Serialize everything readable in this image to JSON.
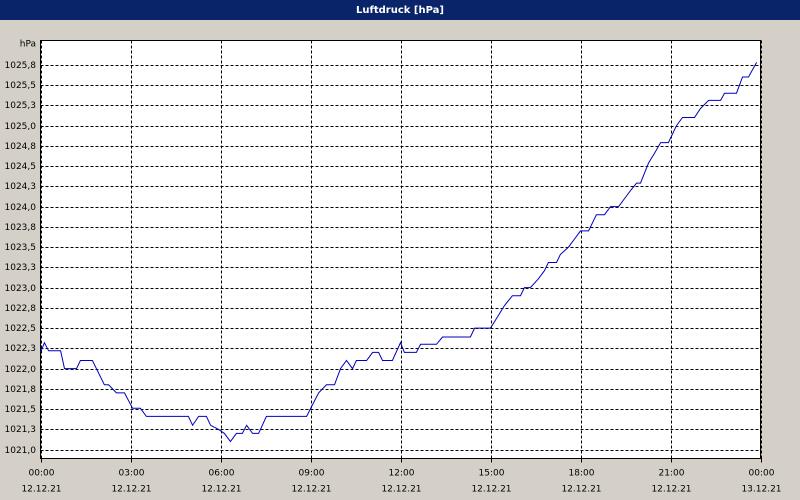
{
  "chart_data": {
    "type": "line",
    "title": "Luftdruck [hPa]",
    "y_label": "hPa",
    "x": [
      0,
      0.13,
      0.27,
      0.67,
      0.8,
      1.2,
      1.33,
      1.73,
      2.13,
      2.27,
      2.53,
      2.8,
      3.07,
      3.33,
      3.53,
      4.93,
      5.07,
      5.27,
      5.53,
      5.67,
      5.93,
      6.13,
      6.33,
      6.53,
      6.73,
      6.87,
      7.07,
      7.27,
      7.53,
      8.87,
      9.27,
      9.53,
      9.8,
      10,
      10.2,
      10.4,
      10.53,
      10.87,
      11.07,
      11.27,
      11.4,
      11.73,
      12,
      12.13,
      12.53,
      12.67,
      13.2,
      13.4,
      14.33,
      14.47,
      15,
      15.47,
      15.73,
      16,
      16.13,
      16.33,
      16.6,
      16.8,
      16.93,
      17.2,
      17.33,
      17.6,
      17.8,
      18,
      18.27,
      18.53,
      18.8,
      19,
      19.27,
      19.47,
      19.67,
      19.87,
      20,
      20.27,
      20.47,
      20.67,
      20.93,
      21.2,
      21.4,
      21.8,
      22,
      22.27,
      22.67,
      22.8,
      23.2,
      23.4,
      23.6,
      23.87
    ],
    "series": [
      {
        "name": "Luftdruck",
        "color": "#0000c0",
        "values": [
          1022.2,
          1022.32,
          1022.22,
          1022.22,
          1022.0,
          1022.0,
          1022.1,
          1022.1,
          1021.8,
          1021.8,
          1021.7,
          1021.7,
          1021.51,
          1021.51,
          1021.41,
          1021.41,
          1021.3,
          1021.41,
          1021.41,
          1021.3,
          1021.25,
          1021.2,
          1021.1,
          1021.2,
          1021.2,
          1021.3,
          1021.2,
          1021.2,
          1021.41,
          1021.41,
          1021.7,
          1021.8,
          1021.8,
          1022.0,
          1022.1,
          1022.0,
          1022.1,
          1022.1,
          1022.2,
          1022.2,
          1022.1,
          1022.1,
          1022.32,
          1022.2,
          1022.2,
          1022.3,
          1022.3,
          1022.39,
          1022.39,
          1022.5,
          1022.5,
          1022.78,
          1022.9,
          1022.9,
          1023.0,
          1023.0,
          1023.11,
          1023.21,
          1023.31,
          1023.31,
          1023.41,
          1023.5,
          1023.6,
          1023.7,
          1023.7,
          1023.9,
          1023.9,
          1024.0,
          1024.0,
          1024.1,
          1024.2,
          1024.29,
          1024.29,
          1024.54,
          1024.66,
          1024.79,
          1024.79,
          1025.0,
          1025.1,
          1025.1,
          1025.21,
          1025.31,
          1025.31,
          1025.4,
          1025.4,
          1025.6,
          1025.6,
          1025.78
        ]
      }
    ],
    "xlim": [
      0,
      24
    ],
    "ylim": [
      1020.89,
      1026.05
    ],
    "xticks": [
      {
        "value": 0,
        "label": "00:00"
      },
      {
        "value": 3,
        "label": "03:00"
      },
      {
        "value": 6,
        "label": "06:00"
      },
      {
        "value": 9,
        "label": "09:00"
      },
      {
        "value": 12,
        "label": "12:00"
      },
      {
        "value": 15,
        "label": "15:00"
      },
      {
        "value": 18,
        "label": "18:00"
      },
      {
        "value": 21,
        "label": "21:00"
      },
      {
        "value": 24,
        "label": "00:00"
      }
    ],
    "xtick_dates": [
      "12.12.21",
      "12.12.21",
      "12.12.21",
      "12.12.21",
      "12.12.21",
      "12.12.21",
      "12.12.21",
      "12.12.21",
      "13.12.21"
    ],
    "yticks": [
      {
        "value": 1021,
        "label": "1021,0"
      },
      {
        "value": 1021.25,
        "label": "1021,3"
      },
      {
        "value": 1021.5,
        "label": "1021,5"
      },
      {
        "value": 1021.75,
        "label": "1021,8"
      },
      {
        "value": 1022,
        "label": "1022,0"
      },
      {
        "value": 1022.25,
        "label": "1022,3"
      },
      {
        "value": 1022.5,
        "label": "1022,5"
      },
      {
        "value": 1022.75,
        "label": "1022,8"
      },
      {
        "value": 1023,
        "label": "1023,0"
      },
      {
        "value": 1023.25,
        "label": "1023,3"
      },
      {
        "value": 1023.5,
        "label": "1023,5"
      },
      {
        "value": 1023.75,
        "label": "1023,8"
      },
      {
        "value": 1024,
        "label": "1024,0"
      },
      {
        "value": 1024.25,
        "label": "1024,3"
      },
      {
        "value": 1024.5,
        "label": "1024,5"
      },
      {
        "value": 1024.75,
        "label": "1024,8"
      },
      {
        "value": 1025,
        "label": "1025,0"
      },
      {
        "value": 1025.25,
        "label": "1025,3"
      },
      {
        "value": 1025.5,
        "label": "1025,5"
      },
      {
        "value": 1025.75,
        "label": "1025,8"
      }
    ],
    "grid": true
  }
}
